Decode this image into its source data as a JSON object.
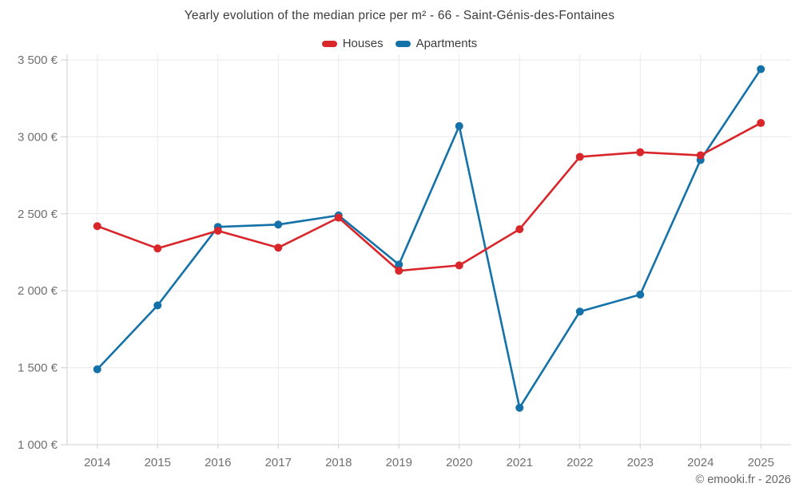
{
  "title": "Yearly evolution of the median price per m² - 66 - Saint-Génis-des-Fontaines",
  "footer": "© emooki.fr - 2026",
  "chart_data": {
    "type": "line",
    "title": "Yearly evolution of the median price per m² - 66 - Saint-Génis-des-Fontaines",
    "categories": [
      "2014",
      "2015",
      "2016",
      "2017",
      "2018",
      "2019",
      "2020",
      "2021",
      "2022",
      "2023",
      "2024",
      "2025"
    ],
    "series": [
      {
        "name": "Houses",
        "color": "#d9262b",
        "values": [
          2420,
          2275,
          2390,
          2280,
          2475,
          2130,
          2165,
          2400,
          2870,
          2900,
          2880,
          3090
        ]
      },
      {
        "name": "Apartments",
        "color": "#1572a8",
        "values": [
          1490,
          1905,
          2415,
          2430,
          2490,
          2170,
          3070,
          1240,
          1865,
          1975,
          2850,
          3440
        ]
      }
    ],
    "xlabel": "",
    "ylabel": "",
    "ylim": [
      1000,
      3500
    ],
    "yticks": [
      {
        "value": 1000,
        "label": "1 000 €"
      },
      {
        "value": 1500,
        "label": "1 500 €"
      },
      {
        "value": 2000,
        "label": "2 000 €"
      },
      {
        "value": 2500,
        "label": "2 500 €"
      },
      {
        "value": 3000,
        "label": "3 000 €"
      },
      {
        "value": 3500,
        "label": "3 500 €"
      }
    ],
    "grid": true,
    "legend_position": "top",
    "colors": {
      "grid": "#e9e9e9",
      "axis": "#cfcfcf",
      "tick_label": "#707070",
      "title_text": "#3d3d3d",
      "footer_text": "#666666"
    }
  }
}
